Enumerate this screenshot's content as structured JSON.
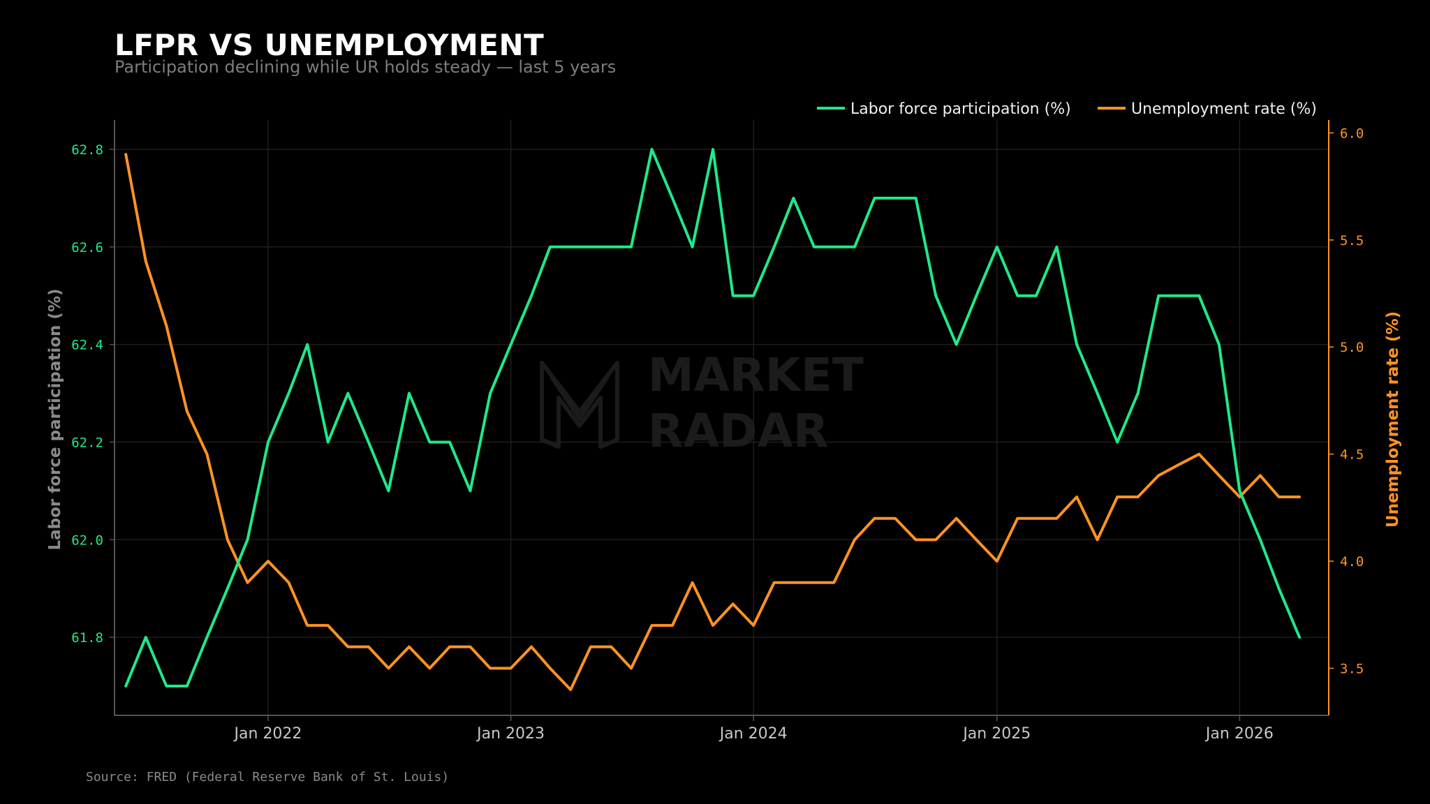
{
  "title": "LFPR VS UNEMPLOYMENT",
  "subtitle": "Participation declining while UR holds steady — last 5 years",
  "source": "Source: FRED (Federal Reserve Bank of St. Louis)",
  "watermark": {
    "line1": "MARKET",
    "line2": "RADAR"
  },
  "colors": {
    "lfpr": "#1fe98a",
    "unrate": "#ff9322",
    "background": "#000000",
    "grid": "#1e1e1e",
    "axis": "#555555"
  },
  "chart_data": {
    "type": "line",
    "title": "LFPR VS UNEMPLOYMENT",
    "xlabel": "",
    "ylabel_left": "Labor force participation (%)",
    "ylabel_right": "Unemployment rate (%)",
    "y_left_ticks": [
      "61.8",
      "62.0",
      "62.2",
      "62.4",
      "62.6",
      "62.8"
    ],
    "y_right_ticks": [
      "3.5",
      "4.0",
      "4.5",
      "5.0",
      "5.5",
      "6.0"
    ],
    "x_ticks": [
      "Jan 2022",
      "Jan 2023",
      "Jan 2024",
      "Jan 2025",
      "Jan 2026"
    ],
    "ylim_left": [
      61.64,
      62.86
    ],
    "ylim_right": [
      3.28,
      6.06
    ],
    "xlim": [
      "2021-05-15",
      "2026-05-15"
    ],
    "grid": true,
    "legend": "top-right",
    "x": [
      "2021-06",
      "2021-07",
      "2021-08",
      "2021-09",
      "2021-10",
      "2021-11",
      "2021-12",
      "2022-01",
      "2022-02",
      "2022-03",
      "2022-04",
      "2022-05",
      "2022-06",
      "2022-07",
      "2022-08",
      "2022-09",
      "2022-10",
      "2022-11",
      "2022-12",
      "2023-01",
      "2023-02",
      "2023-03",
      "2023-04",
      "2023-05",
      "2023-06",
      "2023-07",
      "2023-08",
      "2023-09",
      "2023-10",
      "2023-11",
      "2023-12",
      "2024-01",
      "2024-02",
      "2024-03",
      "2024-04",
      "2024-05",
      "2024-06",
      "2024-07",
      "2024-08",
      "2024-09",
      "2024-10",
      "2024-11",
      "2024-12",
      "2025-01",
      "2025-02",
      "2025-03",
      "2025-04",
      "2025-05",
      "2025-06",
      "2025-07",
      "2025-08",
      "2025-09",
      "2025-10",
      "2025-11",
      "2025-12",
      "2026-01",
      "2026-02",
      "2026-03",
      "2026-04"
    ],
    "series": [
      {
        "name": "Labor force participation (%)",
        "axis": "left",
        "values": [
          61.7,
          61.8,
          61.7,
          61.7,
          61.8,
          61.9,
          62.0,
          62.2,
          62.3,
          62.4,
          62.2,
          62.3,
          62.2,
          62.1,
          62.3,
          62.2,
          62.2,
          62.1,
          62.3,
          62.4,
          62.5,
          62.6,
          62.6,
          62.6,
          62.6,
          62.6,
          62.8,
          62.7,
          62.6,
          62.8,
          62.5,
          62.5,
          62.6,
          62.7,
          62.6,
          62.6,
          62.6,
          62.7,
          62.7,
          62.7,
          62.5,
          62.4,
          62.5,
          62.6,
          62.5,
          62.5,
          62.6,
          62.4,
          62.3,
          62.2,
          62.3,
          62.5,
          62.5,
          62.5,
          62.4,
          62.1,
          62.0,
          61.9,
          61.8
        ]
      },
      {
        "name": "Unemployment rate (%)",
        "axis": "right",
        "values": [
          5.9,
          5.4,
          5.1,
          4.7,
          4.5,
          4.1,
          3.9,
          4.0,
          3.9,
          3.7,
          3.7,
          3.6,
          3.6,
          3.5,
          3.6,
          3.5,
          3.6,
          3.6,
          3.5,
          3.5,
          3.6,
          3.5,
          3.4,
          3.6,
          3.6,
          3.5,
          3.7,
          3.7,
          3.9,
          3.7,
          3.8,
          3.7,
          3.9,
          3.9,
          3.9,
          3.9,
          4.1,
          4.2,
          4.2,
          4.1,
          4.1,
          4.2,
          4.1,
          4.0,
          4.2,
          4.2,
          4.2,
          4.3,
          4.1,
          4.3,
          4.3,
          4.4,
          4.45,
          4.5,
          4.4,
          4.3,
          4.4,
          4.3,
          4.3
        ]
      }
    ]
  }
}
